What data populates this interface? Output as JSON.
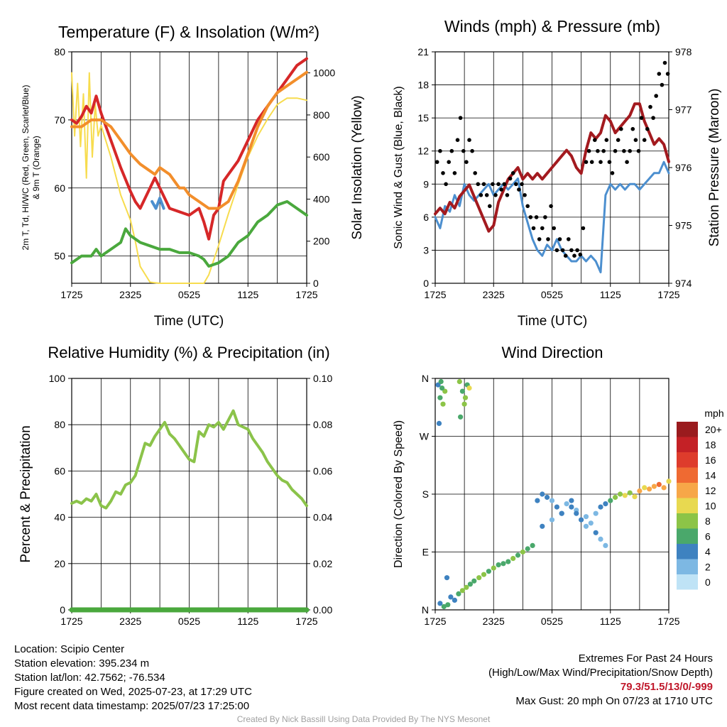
{
  "chart_data": [
    {
      "type": "line",
      "title": "Temperature (F) & Insolation (W/m²)",
      "xlabel": "Time (UTC)",
      "ylabel": "2m T, Td, HI/WC (Red, Green, Scarlet/Blue) & 9m T (Orange)",
      "ylabel_left_lines": [
        "2m T, Td, HI/WC (Red, Green, Scarlet/Blue)",
        "& 9m T (Orange)"
      ],
      "ylabel_right": "Solar Insolation (Yellow)",
      "x_ticks": [
        "1725",
        "2325",
        "0525",
        "1125",
        "1725"
      ],
      "x_range": [
        0,
        24
      ],
      "ylim": [
        46,
        80
      ],
      "y_ticks": [
        "50",
        "60",
        "70",
        "80"
      ],
      "y2lim": [
        0,
        1100
      ],
      "y2_ticks": [
        "0",
        "200",
        "400",
        "600",
        "800",
        "1000"
      ],
      "grid": true,
      "series": [
        {
          "color": "#d62728",
          "x": [
            0,
            0.5,
            1,
            1.5,
            2,
            2.5,
            3,
            3.5,
            4,
            5,
            6,
            6.5,
            7,
            8,
            8.5,
            9,
            10,
            11,
            12,
            13,
            13.5,
            14,
            14.5,
            15,
            15.5,
            16,
            17,
            18,
            19,
            20,
            21,
            22,
            23,
            24
          ],
          "y": [
            70,
            69.5,
            70.5,
            72,
            71,
            73.5,
            71,
            69,
            67,
            63,
            59.5,
            58,
            57,
            60,
            61.5,
            60,
            57,
            56.5,
            56,
            57,
            55,
            52.5,
            56,
            57,
            61,
            62,
            64,
            67,
            70,
            72,
            74,
            76,
            78,
            79
          ]
        },
        {
          "color": "#f28e2b",
          "x": [
            0,
            1,
            2,
            3,
            4,
            5,
            6,
            7,
            8,
            8.5,
            9,
            10,
            11,
            11.5,
            12,
            13,
            14,
            15,
            16,
            17,
            18,
            19,
            20,
            21,
            22,
            23,
            24
          ],
          "y": [
            69,
            69,
            70,
            70,
            69,
            67,
            65,
            63.5,
            62.5,
            62,
            63,
            62,
            60,
            60,
            59,
            58,
            57,
            57,
            58,
            61,
            65,
            69,
            72,
            74,
            75,
            76,
            77
          ]
        },
        {
          "color": "#4aa83d",
          "x": [
            0,
            1,
            2,
            2.5,
            3,
            4,
            5,
            5.5,
            6,
            7,
            8,
            9,
            10,
            11,
            12,
            13,
            13.5,
            14,
            15,
            16,
            17,
            18,
            19,
            20,
            21,
            22,
            23,
            24
          ],
          "y": [
            49,
            50,
            50,
            51,
            50,
            51,
            52,
            54,
            53,
            52,
            51.5,
            51,
            51,
            50.5,
            50.5,
            50,
            49.5,
            48.5,
            49,
            50,
            52,
            53,
            55,
            56,
            57.5,
            58,
            57,
            56
          ]
        },
        {
          "color": "#4c8fcf",
          "x": [
            8.2,
            8.6,
            9,
            9.4
          ],
          "y": [
            58,
            57,
            58.5,
            57
          ]
        }
      ],
      "insolation": {
        "color": "#f7dc4e",
        "x": [
          0,
          0.3,
          0.6,
          0.9,
          1.2,
          1.5,
          1.8,
          2.1,
          2.4,
          2.7,
          3,
          4,
          5,
          6,
          6.5,
          7,
          8,
          9,
          10,
          11,
          12,
          13,
          13.5,
          14,
          15,
          16,
          17,
          18,
          19,
          20,
          21,
          22,
          23,
          24
        ],
        "y": [
          1000,
          700,
          950,
          650,
          900,
          500,
          1000,
          600,
          850,
          700,
          750,
          600,
          420,
          300,
          200,
          80,
          5,
          0,
          0,
          0,
          0,
          0,
          0,
          40,
          180,
          330,
          470,
          600,
          700,
          780,
          850,
          880,
          880,
          870
        ]
      }
    },
    {
      "type": "line",
      "title": "Winds (mph) & Pressure (mb)",
      "xlabel": "Time (UTC)",
      "ylabel": "Sonic Wind & Gust (Blue, Black)",
      "ylabel_right": "Station Pressure (Maroon)",
      "x_ticks": [
        "1725",
        "2325",
        "0525",
        "1125",
        "1725"
      ],
      "x_range": [
        0,
        24
      ],
      "ylim": [
        0,
        21
      ],
      "y_ticks": [
        "0",
        "3",
        "6",
        "9",
        "12",
        "15",
        "18",
        "21"
      ],
      "y2lim": [
        974,
        978
      ],
      "y2_ticks": [
        "974",
        "975",
        "976",
        "977",
        "978"
      ],
      "grid": true,
      "wind": {
        "color": "#4c8fcf",
        "x": [
          0,
          0.5,
          1,
          1.5,
          2,
          2.5,
          3,
          3.5,
          4,
          4.5,
          5,
          5.5,
          6,
          6.5,
          7,
          7.5,
          8,
          8.5,
          9,
          9.5,
          10,
          10.5,
          11,
          11.5,
          12,
          12.5,
          13,
          13.5,
          14,
          14.5,
          15,
          15.5,
          16,
          16.5,
          17,
          17.5,
          18,
          18.5,
          19,
          19.5,
          20,
          20.5,
          21,
          21.5,
          22,
          22.5,
          23,
          23.5,
          24
        ],
        "y": [
          6,
          5,
          7,
          6.5,
          8,
          7,
          9,
          8,
          7.5,
          8,
          8.5,
          9,
          8,
          8.5,
          9,
          8.5,
          9,
          9.5,
          7,
          5.5,
          4,
          3,
          2.5,
          3.5,
          3,
          4,
          3,
          2.5,
          2,
          2,
          2.5,
          2,
          2.5,
          2,
          1,
          8,
          9,
          8.5,
          9,
          8.5,
          9,
          9,
          8.5,
          9,
          9.5,
          10,
          10,
          11,
          10
        ]
      },
      "pressure": {
        "color": "#a31a1f",
        "x": [
          0,
          0.5,
          1,
          1.5,
          2,
          2.5,
          3,
          3.5,
          4,
          4.5,
          5,
          5.5,
          6,
          6.5,
          7,
          7.5,
          8,
          8.5,
          9,
          9.5,
          10,
          10.5,
          11,
          11.5,
          12,
          12.5,
          13,
          13.5,
          14,
          14.5,
          15,
          15.5,
          16,
          16.5,
          17,
          17.5,
          18,
          18.5,
          19,
          19.5,
          20,
          20.5,
          21,
          21.5,
          22,
          22.5,
          23,
          23.5,
          24
        ],
        "y": [
          975.2,
          975.3,
          975.2,
          975.4,
          975.3,
          975.5,
          975.6,
          975.7,
          975.5,
          975.3,
          975.1,
          974.9,
          975.0,
          975.4,
          975.6,
          975.8,
          975.9,
          976.0,
          975.8,
          975.9,
          975.8,
          975.9,
          975.8,
          975.9,
          976.0,
          976.1,
          976.2,
          976.3,
          976.2,
          976.0,
          975.9,
          976.3,
          976.6,
          976.5,
          976.6,
          976.9,
          976.8,
          976.6,
          976.7,
          976.8,
          976.9,
          977.1,
          977.1,
          976.8,
          976.6,
          976.4,
          976.5,
          976.4,
          976.1
        ]
      },
      "gust": {
        "color": "#000000",
        "x": [
          0.2,
          0.5,
          0.8,
          1.1,
          1.4,
          1.7,
          2,
          2.3,
          2.6,
          2.9,
          3.2,
          3.5,
          3.8,
          4.1,
          4.4,
          4.7,
          5,
          5.3,
          5.6,
          5.9,
          6.2,
          6.5,
          6.8,
          7.1,
          7.4,
          7.7,
          8,
          8.3,
          8.6,
          8.9,
          9.2,
          9.5,
          9.8,
          10.1,
          10.4,
          10.7,
          11,
          11.3,
          11.6,
          11.9,
          12.2,
          12.5,
          12.8,
          13.1,
          13.4,
          13.7,
          14,
          14.3,
          14.6,
          14.9,
          15.2,
          15.5,
          15.8,
          16.1,
          16.4,
          16.7,
          17,
          17.3,
          17.6,
          17.9,
          18.2,
          18.5,
          18.8,
          19.1,
          19.4,
          19.7,
          20,
          20.3,
          20.6,
          20.9,
          21.2,
          21.5,
          21.8,
          22.1,
          22.4,
          22.7,
          23,
          23.3,
          23.6,
          23.9
        ],
        "y": [
          11,
          12,
          10,
          9,
          11,
          12,
          10,
          13,
          15,
          12,
          11,
          13,
          12,
          10,
          9,
          8,
          9,
          8,
          7,
          9,
          8,
          9,
          8.5,
          9,
          8,
          9.5,
          10,
          9,
          8.5,
          9,
          8,
          7,
          6,
          5,
          6,
          4,
          5,
          6,
          4,
          7,
          5,
          3,
          4,
          3,
          2.5,
          4,
          3,
          2.5,
          3,
          2.6,
          5,
          11,
          12,
          11,
          13,
          12,
          11,
          12,
          13,
          11,
          10,
          12,
          13,
          14,
          12,
          11,
          12,
          14,
          13,
          12,
          15,
          13,
          14,
          16,
          15,
          17,
          19,
          18,
          20,
          19
        ]
      }
    },
    {
      "type": "line",
      "title": "Relative Humidity (%) & Precipitation (in)",
      "xlabel": "",
      "ylabel": "Percent & Precipitation",
      "ylabel_right": "",
      "x_ticks": [
        "1725",
        "2325",
        "0525",
        "1125",
        "1725"
      ],
      "x_range": [
        0,
        24
      ],
      "ylim": [
        0,
        100
      ],
      "y_ticks": [
        "0",
        "20",
        "40",
        "60",
        "80",
        "100"
      ],
      "y2lim": [
        0,
        0.1
      ],
      "y2_ticks": [
        "0.00",
        "0.02",
        "0.04",
        "0.06",
        "0.08",
        "0.10"
      ],
      "grid": true,
      "rh": {
        "color": "#8bc34a",
        "x": [
          0,
          0.5,
          1,
          1.5,
          2,
          2.5,
          3,
          3.5,
          4,
          4.5,
          5,
          5.5,
          6,
          6.5,
          7,
          7.5,
          8,
          8.5,
          9,
          9.5,
          10,
          10.5,
          11,
          11.5,
          12,
          12.5,
          13,
          13.5,
          14,
          14.5,
          15,
          15.5,
          16,
          16.5,
          17,
          17.5,
          18,
          18.5,
          19,
          19.5,
          20,
          20.5,
          21,
          21.5,
          22,
          22.5,
          23,
          23.5,
          24
        ],
        "y": [
          46,
          47,
          46,
          48,
          47,
          50,
          45,
          44,
          47,
          51,
          50,
          54,
          55,
          58,
          65,
          72,
          71,
          75,
          78,
          81,
          76,
          74,
          71,
          68,
          65,
          64,
          77,
          75,
          80,
          79,
          81,
          78,
          82,
          86,
          80,
          79,
          78,
          74,
          71,
          68,
          64,
          61,
          58,
          56,
          55,
          52,
          50,
          48,
          45
        ]
      },
      "precip": {
        "color": "#4aa83d",
        "x": [
          0,
          24
        ],
        "y": [
          0,
          0
        ]
      }
    },
    {
      "type": "scatter",
      "title": "Wind Direction",
      "xlabel": "",
      "ylabel": "Direction (Colored By Speed)",
      "x_ticks": [
        "1725",
        "2325",
        "0525",
        "1125",
        "1725"
      ],
      "x_range": [
        0,
        24
      ],
      "ylim": [
        0,
        360
      ],
      "y_ticks": [
        "N",
        "E",
        "S",
        "W",
        "N"
      ],
      "grid": true,
      "legend": {
        "title": "mph",
        "labels": [
          "20+",
          "18",
          "16",
          "14",
          "12",
          "10",
          "8",
          "6",
          "4",
          "2",
          "0"
        ],
        "colors": [
          "#9a1b1e",
          "#c42126",
          "#de3c2c",
          "#ef6a32",
          "#f7a748",
          "#e8d950",
          "#8cc447",
          "#4aa86b",
          "#3e82c0",
          "#7db8e3",
          "#bfe3f6"
        ]
      },
      "points": {
        "x": [
          0.3,
          0.5,
          0.6,
          0.8,
          1.0,
          0.4,
          0.7,
          1.2,
          2.5,
          2.8,
          3.1,
          3.3,
          2.6,
          3.0,
          3.5,
          0.5,
          0.9,
          1.3,
          1.6,
          2.0,
          2.4,
          2.8,
          3.2,
          3.6,
          4.0,
          4.5,
          5,
          5.5,
          6,
          6.5,
          7,
          7.5,
          8,
          8.5,
          9,
          9.5,
          10,
          10.5,
          11,
          11.5,
          12,
          12.5,
          13,
          13.5,
          14,
          14.5,
          15,
          15.5,
          16,
          16.5,
          17,
          17.5,
          18,
          18.5,
          19,
          19.5,
          20,
          20.5,
          21,
          21.5,
          22,
          22.5,
          23,
          23.5,
          24,
          16.5,
          17,
          17.5,
          14,
          14.5,
          15.5,
          11,
          12,
          13
        ],
        "y": [
          350,
          330,
          355,
          320,
          340,
          290,
          345,
          50,
          355,
          340,
          330,
          350,
          300,
          320,
          345,
          10,
          5,
          8,
          20,
          15,
          25,
          30,
          35,
          40,
          45,
          50,
          55,
          60,
          65,
          70,
          72,
          75,
          80,
          85,
          90,
          95,
          100,
          170,
          180,
          175,
          170,
          160,
          150,
          165,
          170,
          155,
          140,
          130,
          135,
          150,
          160,
          165,
          170,
          175,
          180,
          178,
          182,
          176,
          185,
          190,
          188,
          192,
          195,
          190,
          200,
          120,
          110,
          100,
          160,
          150,
          145,
          130,
          140,
          150
        ],
        "speeds": [
          4,
          5,
          6,
          7,
          8,
          4,
          5,
          3,
          7,
          6,
          8,
          5,
          6,
          7,
          10,
          4,
          5,
          6,
          3,
          4,
          5,
          7,
          8,
          6,
          5,
          7,
          8,
          6,
          7,
          6,
          5,
          6,
          7,
          6,
          7,
          6,
          5,
          4,
          3,
          4,
          2,
          3,
          4,
          2,
          3,
          2,
          3,
          2,
          1,
          2,
          3,
          4,
          6,
          7,
          8,
          9,
          8,
          10,
          11,
          10,
          12,
          11,
          13,
          12,
          10,
          3,
          2,
          2,
          4,
          3,
          2,
          3,
          2,
          3
        ]
      }
    }
  ],
  "footer": {
    "location": "Location: Scipio Center",
    "elevation": "Station elevation: 395.234 m",
    "latlon": "Station lat/lon: 42.7562; -76.534",
    "created": "Figure created on Wed, 2025-07-23, at 17:29 UTC",
    "recent": "Most recent data timestamp: 2025/07/23 17:25:00",
    "extremes_title": "Extremes For Past 24 Hours",
    "extremes_sub": "(High/Low/Max Wind/Precipitation/Snow Depth)",
    "extremes_values": "79.3/51.5/13/0/-999",
    "max_gust": "Max Gust: 20 mph On 07/23 at 1710 UTC",
    "credit": "Created By Nick Bassill Using Data Provided By The NYS Mesonet"
  }
}
